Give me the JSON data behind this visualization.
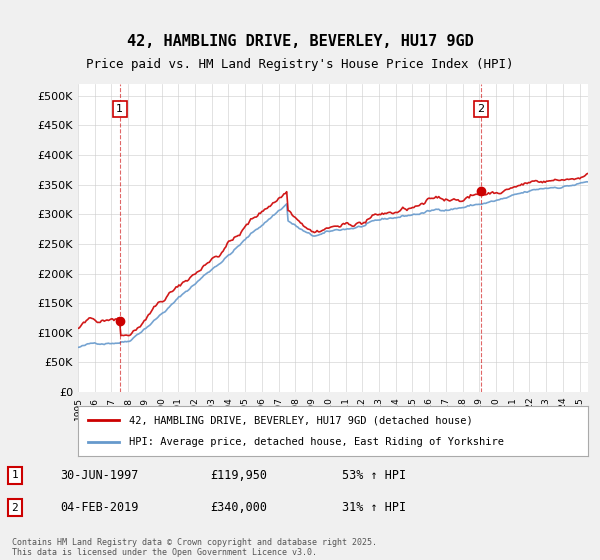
{
  "title1": "42, HAMBLING DRIVE, BEVERLEY, HU17 9GD",
  "title2": "Price paid vs. HM Land Registry's House Price Index (HPI)",
  "legend_line1": "42, HAMBLING DRIVE, BEVERLEY, HU17 9GD (detached house)",
  "legend_line2": "HPI: Average price, detached house, East Riding of Yorkshire",
  "footer": "Contains HM Land Registry data © Crown copyright and database right 2025.\nThis data is licensed under the Open Government Licence v3.0.",
  "point1_date": "30-JUN-1997",
  "point1_price": "£119,950",
  "point1_hpi": "53% ↑ HPI",
  "point1_year": 1997.5,
  "point1_value": 119950,
  "point2_date": "04-FEB-2019",
  "point2_price": "£340,000",
  "point2_hpi": "31% ↑ HPI",
  "point2_year": 2019.08,
  "point2_value": 340000,
  "red_color": "#cc0000",
  "blue_color": "#6699cc",
  "background": "#f0f0f0",
  "plot_bg": "#ffffff",
  "grid_color": "#cccccc",
  "ylim_min": 0,
  "ylim_max": 520000,
  "xlim_min": 1995,
  "xlim_max": 2025.5
}
